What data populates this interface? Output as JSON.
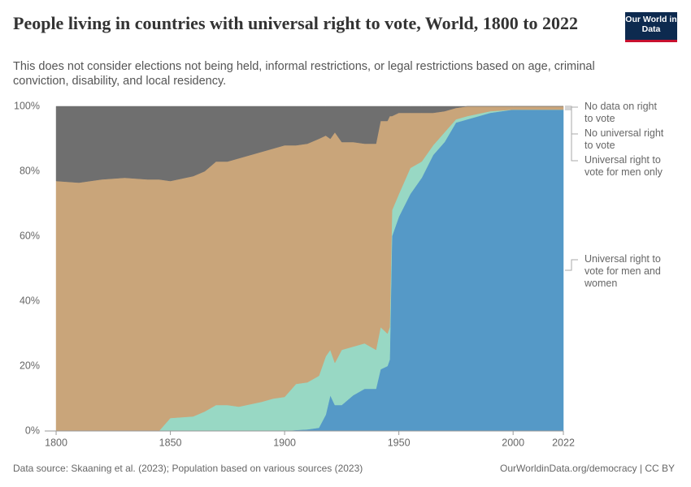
{
  "header": {
    "logo": "Our World in Data"
  },
  "chart_data": {
    "type": "stacked-area",
    "title": "People living in countries with universal right to vote, World, 1800 to 2022",
    "subtitle": "This does not consider elections not being held, informal restrictions, or legal restrictions based on age, criminal conviction, disability, and local residency.",
    "x": [
      1800,
      1810,
      1820,
      1830,
      1840,
      1845,
      1850,
      1860,
      1865,
      1870,
      1875,
      1880,
      1890,
      1895,
      1900,
      1905,
      1910,
      1915,
      1918,
      1920,
      1922,
      1925,
      1930,
      1935,
      1940,
      1942,
      1945,
      1946,
      1947,
      1950,
      1955,
      1960,
      1965,
      1970,
      1975,
      1980,
      1990,
      2000,
      2010,
      2022
    ],
    "series": [
      {
        "name": "Universal right to vote for men and women",
        "color": "#5599c7",
        "label_color": "#2f6db1",
        "values": [
          0,
          0,
          0,
          0,
          0,
          0,
          0,
          0,
          0,
          0,
          0,
          0,
          0,
          0,
          0,
          0.3,
          0.5,
          1,
          5,
          11,
          8,
          8,
          11,
          13,
          13,
          19,
          20,
          22,
          60,
          66,
          73,
          78,
          85,
          89,
          95,
          96,
          98,
          99,
          99,
          99
        ]
      },
      {
        "name": "Universal right to vote for men only",
        "color": "#98d8c4",
        "label_color": "#4fb897",
        "values": [
          0,
          0,
          0,
          0,
          0,
          0,
          4,
          4.5,
          6,
          8,
          8,
          7.5,
          9,
          10,
          10.5,
          14.2,
          14.5,
          16,
          18,
          14,
          13,
          17,
          15,
          14,
          12,
          13,
          10,
          10,
          8,
          7,
          8,
          5,
          3,
          3,
          1,
          1,
          0.5,
          0,
          0,
          0
        ]
      },
      {
        "name": "No universal right to vote",
        "color": "#c9a57a",
        "label_color": "#b48a52",
        "values": [
          77,
          76.5,
          77.5,
          78,
          77.5,
          77.5,
          73,
          74,
          74,
          75,
          75,
          76.5,
          77,
          77,
          77.5,
          73.5,
          73.5,
          73,
          68,
          65,
          71,
          64,
          63,
          61.5,
          63.5,
          63.5,
          65.5,
          65,
          29,
          25,
          17,
          15,
          10,
          6.5,
          3.5,
          3,
          1.5,
          1,
          1,
          1
        ]
      },
      {
        "name": "No data on right to vote",
        "color": "#6f6f6f",
        "label_color": "#444444",
        "values": [
          23,
          23.5,
          22.5,
          22,
          22.5,
          22.5,
          23,
          21.5,
          20,
          17,
          17,
          16,
          14,
          13,
          12,
          12,
          11.5,
          10,
          9,
          10,
          8,
          11,
          11,
          11.5,
          11.5,
          4.5,
          4.5,
          3,
          3,
          2,
          2,
          2,
          2,
          1.5,
          0.5,
          0,
          0,
          0,
          0,
          0
        ]
      }
    ],
    "xlim": [
      1795,
      2022
    ],
    "xticks": [
      1800,
      1850,
      1900,
      1950,
      2000,
      2022
    ],
    "ylim": [
      0,
      100
    ],
    "yticks": [
      {
        "value": 0,
        "label": "0%"
      },
      {
        "value": 20,
        "label": "20%"
      },
      {
        "value": 40,
        "label": "40%"
      },
      {
        "value": 60,
        "label": "60%"
      },
      {
        "value": 80,
        "label": "80%"
      },
      {
        "value": 100,
        "label": "100%"
      }
    ],
    "source": "Data source: Skaaning et al. (2023); Population based on various sources (2023)",
    "url": "OurWorldinData.org/democracy | CC BY"
  }
}
